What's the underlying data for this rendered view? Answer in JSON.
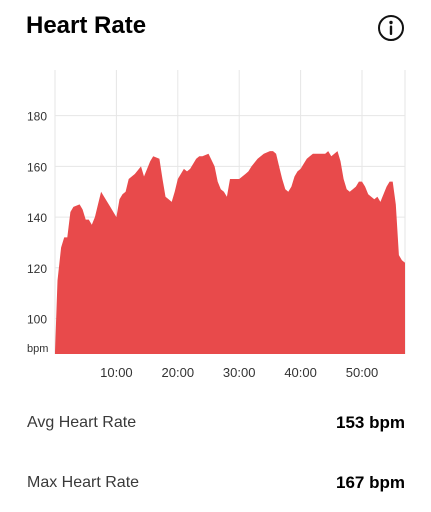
{
  "header": {
    "title": "Heart Rate",
    "info_icon": "info-circle-icon"
  },
  "chart_data": {
    "type": "area",
    "title": "",
    "xlabel": "",
    "ylabel": "bpm",
    "x_unit": "minutes",
    "xlim": [
      0,
      57
    ],
    "ylim": [
      86,
      198
    ],
    "x_ticks": [
      10,
      20,
      30,
      40,
      50
    ],
    "x_tick_labels": [
      "10:00",
      "20:00",
      "30:00",
      "40:00",
      "50:00"
    ],
    "y_ticks": [
      100,
      120,
      140,
      160,
      180
    ],
    "y_tick_labels": [
      "100",
      "120",
      "140",
      "160",
      "180"
    ],
    "grid": true,
    "color": "#e84a4b",
    "x": [
      0,
      0.4,
      1,
      1.5,
      2,
      2.5,
      3,
      4,
      4.5,
      5,
      5.5,
      6,
      6.5,
      7,
      7.5,
      8,
      9,
      10,
      10.5,
      11,
      11.5,
      12,
      13,
      14,
      14.5,
      15,
      15.5,
      16,
      17,
      17.5,
      18,
      18.5,
      19,
      19.5,
      20,
      21,
      21.5,
      22,
      22.5,
      23,
      23.5,
      24,
      25,
      26,
      26.5,
      27,
      27.5,
      28,
      28.5,
      29,
      29.5,
      30,
      31,
      31.5,
      32,
      33,
      34,
      35,
      35.5,
      36,
      36.5,
      37,
      37.5,
      38,
      38.5,
      39,
      39.5,
      40,
      40.5,
      41,
      41.5,
      42,
      43,
      44,
      44.5,
      45,
      46,
      46.5,
      47,
      47.5,
      48,
      48.5,
      49,
      49.5,
      50,
      50.5,
      51,
      51.5,
      52,
      52.5,
      53,
      54,
      54.5,
      55,
      55.5,
      56,
      56.5,
      57
    ],
    "values": [
      87,
      115,
      128,
      132,
      132,
      142,
      144,
      145,
      143,
      139,
      139,
      137,
      140,
      145,
      150,
      148,
      144,
      140,
      147,
      149,
      150,
      155,
      157,
      160,
      156,
      159,
      162,
      164,
      163,
      155,
      148,
      147,
      146,
      150,
      155,
      159,
      158,
      159,
      161,
      163,
      164,
      164,
      165,
      160,
      154,
      151,
      150,
      148,
      155,
      155,
      155,
      155,
      157,
      158,
      160,
      163,
      165,
      166,
      166,
      165,
      160,
      155,
      151,
      150,
      152,
      156,
      158,
      159,
      161,
      163,
      164,
      165,
      165,
      165,
      166,
      164,
      166,
      162,
      155,
      151,
      150,
      151,
      152,
      154,
      154,
      152,
      149,
      148,
      147,
      148,
      146,
      152,
      154,
      154,
      145,
      125,
      123,
      122
    ]
  },
  "stats": [
    {
      "label": "Avg Heart Rate",
      "value": "153 bpm"
    },
    {
      "label": "Max Heart Rate",
      "value": "167 bpm"
    }
  ]
}
